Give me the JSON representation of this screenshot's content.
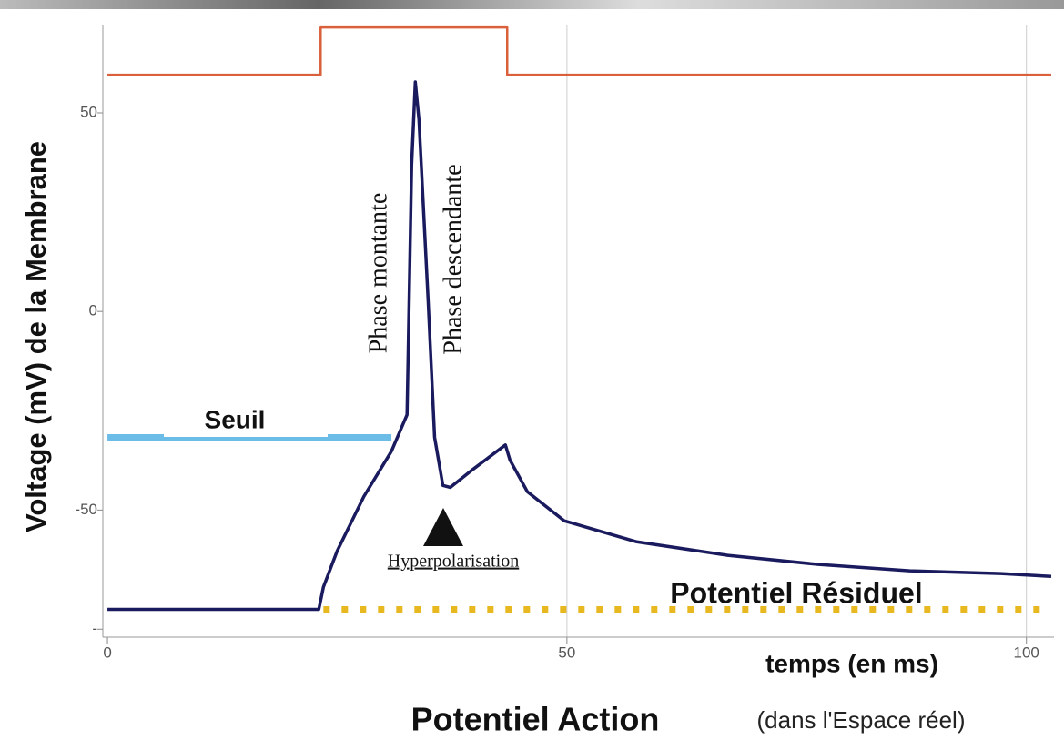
{
  "chart_data": {
    "type": "line",
    "title": "Potentiel Action",
    "subtitle": "(dans l'Espace réel)",
    "x_label": "temps (en ms)",
    "y_label": "Voltage (mV) de la Membrane",
    "annotations": [
      "Phase montante",
      "Phase descendante",
      "Seuil",
      "Hyperpolarisation",
      "Potentiel Résiduel"
    ],
    "xlim": [
      -0.5,
      103
    ],
    "ylim": [
      -82,
      72
    ],
    "xticks": [
      0,
      50,
      100
    ],
    "yticks": [
      {
        "value": -80,
        "label": "-"
      },
      -50,
      0,
      50
    ],
    "grid": true,
    "series": [
      {
        "name": "Voltage",
        "color": "#1a1a5e",
        "dash": "solid",
        "width": 3.5,
        "x": [
          0,
          23,
          23.5,
          25,
          27.9,
          30.9,
          32.6,
          33.1,
          33.5,
          33.9,
          34.9,
          35.6,
          36.5,
          37.3,
          39.8,
          43.3,
          43.8,
          45.7,
          49.7,
          57.6,
          67.5,
          77.4,
          87.3,
          97.2,
          102.7
        ],
        "values": [
          -75,
          -75,
          -69.4,
          -60.3,
          -46.6,
          -35.2,
          -26,
          36.8,
          57.8,
          48.2,
          2.5,
          -31.7,
          -43.8,
          -44.3,
          -39.7,
          -33.6,
          -37.4,
          -45.4,
          -52.7,
          -58,
          -61.4,
          -63.7,
          -65.3,
          -66,
          -66.7
        ]
      },
      {
        "name": "Stimulus",
        "color": "#d9603b",
        "dash": "solid",
        "width": 2.5,
        "x": [
          0,
          23.2,
          23.2,
          43.5,
          43.5,
          102.7
        ],
        "values": [
          59.6,
          59.6,
          71.5,
          71.5,
          59.6,
          59.6
        ]
      },
      {
        "name": "Seuil",
        "color": "#6bbde8",
        "dash": "solid",
        "width": 7,
        "x": [
          0,
          30.9
        ],
        "values": [
          -31.7,
          -31.7
        ]
      },
      {
        "name": "Potentiel Résiduel",
        "color": "#e8b820",
        "dash": "dotted",
        "width": 7,
        "x": [
          23.5,
          102.5
        ],
        "values": [
          -75,
          -75
        ]
      }
    ]
  }
}
